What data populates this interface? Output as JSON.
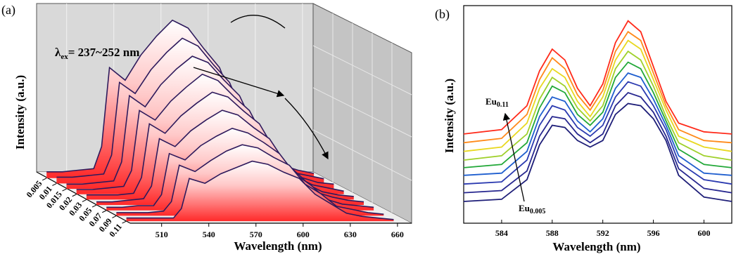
{
  "chart_data": [
    {
      "type": "waterfall3d",
      "panel_label": "(a)",
      "x_label": "Wavelength (nm)",
      "y_label": "Intensity (a.u.)",
      "annotation": {
        "symbol": "λ",
        "sub": "ex",
        "text": "= 237~252 nm"
      },
      "x": [
        490,
        500,
        510,
        520,
        525,
        530,
        540,
        550,
        560,
        570,
        580,
        590,
        600,
        610,
        620,
        630,
        640,
        650,
        660
      ],
      "xlim": [
        490,
        669
      ],
      "xticks": [
        510,
        540,
        570,
        600,
        630,
        660
      ],
      "ylim": [
        0,
        100
      ],
      "depth_categories": [
        "0.005",
        "0.01",
        "0.015",
        "0.02",
        "0.03",
        "0.05",
        "0.07",
        "0.09",
        "0.11"
      ],
      "fill_color": "#ff2a2a",
      "line_color": "#2e1a5c",
      "series": [
        {
          "values": [
            4,
            4,
            5,
            6,
            20,
            70,
            62,
            78,
            90,
            100,
            95,
            82,
            70,
            45,
            30,
            14,
            8,
            5,
            3
          ]
        },
        {
          "values": [
            4,
            4,
            5,
            6,
            18,
            64,
            57,
            72,
            83,
            92,
            87,
            75,
            64,
            41,
            28,
            13,
            7,
            5,
            3
          ]
        },
        {
          "values": [
            3,
            3,
            4,
            5,
            17,
            59,
            52,
            66,
            76,
            84,
            80,
            69,
            59,
            38,
            25,
            12,
            7,
            4,
            3
          ]
        },
        {
          "values": [
            3,
            3,
            4,
            5,
            15,
            53,
            47,
            59,
            68,
            76,
            72,
            62,
            53,
            34,
            23,
            11,
            6,
            4,
            2
          ]
        },
        {
          "values": [
            3,
            3,
            3,
            4,
            14,
            48,
            42,
            53,
            61,
            68,
            65,
            56,
            48,
            31,
            20,
            10,
            5,
            3,
            2
          ]
        },
        {
          "values": [
            2,
            2,
            3,
            4,
            12,
            42,
            37,
            47,
            54,
            60,
            57,
            49,
            42,
            27,
            18,
            8,
            5,
            3,
            2
          ]
        },
        {
          "values": [
            2,
            2,
            3,
            3,
            10,
            36,
            32,
            41,
            47,
            52,
            49,
            43,
            36,
            23,
            16,
            7,
            4,
            3,
            2
          ]
        },
        {
          "values": [
            2,
            2,
            2,
            3,
            9,
            32,
            28,
            35,
            41,
            45,
            43,
            37,
            32,
            20,
            14,
            6,
            4,
            2,
            1
          ]
        },
        {
          "values": [
            2,
            2,
            2,
            2,
            8,
            27,
            24,
            30,
            34,
            38,
            36,
            31,
            27,
            17,
            11,
            5,
            3,
            2,
            1
          ]
        }
      ]
    },
    {
      "type": "line",
      "panel_label": "(b)",
      "x_label": "Wavelength (nm)",
      "y_label": "Intensity (a.u.)",
      "annotations": [
        {
          "text": "Eu",
          "sub": "0.11"
        },
        {
          "text": "Eu",
          "sub": "0.005"
        }
      ],
      "x": [
        581,
        584,
        586,
        587,
        588,
        589,
        590,
        591,
        592,
        593,
        594,
        595,
        596,
        597,
        598,
        600,
        602.2
      ],
      "xlim": [
        581,
        602.2
      ],
      "xticks": [
        584,
        588,
        592,
        596,
        600
      ],
      "ylim": [
        0,
        100
      ],
      "series": [
        {
          "color": "#1e1e78",
          "values": [
            10,
            11,
            20,
            36,
            45,
            44,
            38,
            35,
            38,
            50,
            55,
            54,
            48,
            38,
            22,
            12,
            10
          ]
        },
        {
          "color": "#27278f",
          "values": [
            14,
            15,
            24,
            40,
            49,
            48,
            41,
            37,
            41,
            54,
            60,
            58,
            51,
            40,
            25,
            16,
            14
          ]
        },
        {
          "color": "#2b3ab0",
          "values": [
            18,
            19,
            29,
            45,
            54,
            52,
            44,
            40,
            45,
            58,
            65,
            63,
            54,
            43,
            28,
            20,
            18
          ]
        },
        {
          "color": "#1f5fcf",
          "values": [
            22,
            23,
            33,
            49,
            58,
            56,
            47,
            42,
            48,
            62,
            69,
            67,
            57,
            45,
            31,
            23,
            22
          ]
        },
        {
          "color": "#22a838",
          "values": [
            25.5,
            27,
            37,
            53,
            63,
            60,
            50,
            45,
            51,
            67,
            74,
            71,
            60,
            47,
            34,
            27,
            25.5
          ]
        },
        {
          "color": "#9fd02a",
          "values": [
            29,
            31,
            41,
            57,
            67,
            63,
            53,
            47,
            54,
            71,
            79,
            75,
            63,
            49,
            37,
            31,
            29
          ]
        },
        {
          "color": "#e8d820",
          "values": [
            33,
            35,
            46,
            62,
            71,
            67,
            56,
            49,
            58,
            75,
            84,
            80,
            66,
            52,
            40,
            35,
            33
          ]
        },
        {
          "color": "#ff8a1a",
          "values": [
            37,
            39,
            50,
            66,
            76,
            71,
            59,
            52,
            61,
            79,
            88,
            84,
            69,
            54,
            43,
            38,
            37
          ]
        },
        {
          "color": "#ff2a1a",
          "values": [
            41,
            43,
            54,
            70,
            80,
            75,
            62,
            54,
            64,
            83,
            93,
            88,
            72,
            56,
            46,
            42,
            41
          ]
        }
      ]
    }
  ]
}
